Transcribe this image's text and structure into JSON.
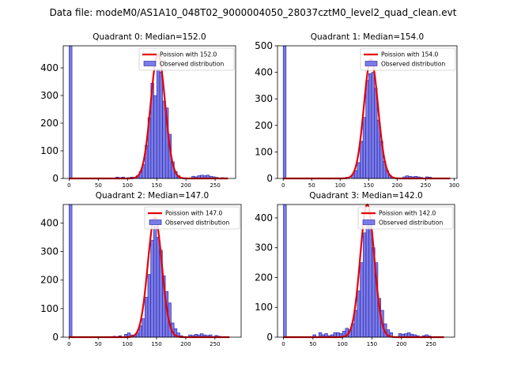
{
  "figure": {
    "suptitle": "Data file: modeM0/AS1A10_048T02_9000004050_28037cztM0_level2_quad_clean.evt"
  },
  "colors": {
    "bar_fill": "#7b7be8",
    "bar_edge": "#1f1fa0",
    "fit_line": "#e80000",
    "axis": "#000000"
  },
  "chart_data": [
    {
      "type": "bar",
      "title": "Quadrant 0: Median=152.0",
      "legend_location": "top-right",
      "legend": [
        "Poission with 152.0",
        "Observed distribution"
      ],
      "xlim": [
        -10,
        285
      ],
      "ylim": [
        0,
        480
      ],
      "xticks": [
        "0",
        "50",
        "100",
        "150",
        "200",
        "250"
      ],
      "yticks": [
        "0",
        "100",
        "200",
        "300",
        "400"
      ],
      "bin_width": 5,
      "hist": [
        {
          "x": 0,
          "y": 480
        },
        {
          "x": 80,
          "y": 5
        },
        {
          "x": 85,
          "y": 3
        },
        {
          "x": 90,
          "y": 5
        },
        {
          "x": 100,
          "y": 3
        },
        {
          "x": 105,
          "y": 5
        },
        {
          "x": 115,
          "y": 10
        },
        {
          "x": 120,
          "y": 25
        },
        {
          "x": 125,
          "y": 50
        },
        {
          "x": 130,
          "y": 120
        },
        {
          "x": 135,
          "y": 220
        },
        {
          "x": 140,
          "y": 345
        },
        {
          "x": 145,
          "y": 300
        },
        {
          "x": 150,
          "y": 395
        },
        {
          "x": 155,
          "y": 385
        },
        {
          "x": 160,
          "y": 280
        },
        {
          "x": 165,
          "y": 255
        },
        {
          "x": 170,
          "y": 160
        },
        {
          "x": 175,
          "y": 60
        },
        {
          "x": 180,
          "y": 25
        },
        {
          "x": 185,
          "y": 10
        },
        {
          "x": 190,
          "y": 3
        },
        {
          "x": 195,
          "y": 2
        },
        {
          "x": 210,
          "y": 8
        },
        {
          "x": 215,
          "y": 6
        },
        {
          "x": 220,
          "y": 10
        },
        {
          "x": 225,
          "y": 12
        },
        {
          "x": 230,
          "y": 10
        },
        {
          "x": 235,
          "y": 12
        },
        {
          "x": 240,
          "y": 8
        },
        {
          "x": 245,
          "y": 6
        },
        {
          "x": 250,
          "y": 4
        },
        {
          "x": 260,
          "y": 3
        }
      ],
      "fit": {
        "label": "Poission with 152.0",
        "mu": 152.0,
        "peak": 450,
        "range": [
          0,
          272
        ]
      }
    },
    {
      "type": "bar",
      "title": "Quadrant 1: Median=154.0",
      "legend_location": "top-right",
      "legend": [
        "Poission with 154.0",
        "Observed distribution"
      ],
      "xlim": [
        -10,
        305
      ],
      "ylim": [
        0,
        500
      ],
      "xticks": [
        "0",
        "50",
        "100",
        "150",
        "200",
        "250",
        "300"
      ],
      "yticks": [
        "0",
        "100",
        "200",
        "300",
        "400",
        "500"
      ],
      "bin_width": 5,
      "hist": [
        {
          "x": 0,
          "y": 500
        },
        {
          "x": 95,
          "y": 2
        },
        {
          "x": 105,
          "y": 3
        },
        {
          "x": 110,
          "y": 5
        },
        {
          "x": 120,
          "y": 15
        },
        {
          "x": 125,
          "y": 30
        },
        {
          "x": 130,
          "y": 60
        },
        {
          "x": 135,
          "y": 140
        },
        {
          "x": 140,
          "y": 230
        },
        {
          "x": 145,
          "y": 370
        },
        {
          "x": 150,
          "y": 395
        },
        {
          "x": 155,
          "y": 400
        },
        {
          "x": 160,
          "y": 340
        },
        {
          "x": 165,
          "y": 220
        },
        {
          "x": 170,
          "y": 140
        },
        {
          "x": 175,
          "y": 65
        },
        {
          "x": 180,
          "y": 30
        },
        {
          "x": 185,
          "y": 12
        },
        {
          "x": 190,
          "y": 5
        },
        {
          "x": 210,
          "y": 6
        },
        {
          "x": 215,
          "y": 10
        },
        {
          "x": 220,
          "y": 8
        },
        {
          "x": 225,
          "y": 6
        },
        {
          "x": 230,
          "y": 8
        },
        {
          "x": 235,
          "y": 6
        },
        {
          "x": 240,
          "y": 4
        },
        {
          "x": 250,
          "y": 6
        },
        {
          "x": 255,
          "y": 5
        }
      ],
      "fit": {
        "label": "Poission with 154.0",
        "mu": 154.0,
        "peak": 450,
        "range": [
          0,
          293
        ]
      }
    },
    {
      "type": "bar",
      "title": "Quadrant 2: Median=147.0",
      "legend_location": "top-right",
      "legend": [
        "Poission with 147.0",
        "Observed distribution"
      ],
      "xlim": [
        -10,
        295
      ],
      "ylim": [
        0,
        465
      ],
      "xticks": [
        "0",
        "50",
        "100",
        "150",
        "200",
        "250"
      ],
      "yticks": [
        "0",
        "100",
        "200",
        "300",
        "400"
      ],
      "bin_width": 5,
      "hist": [
        {
          "x": 0,
          "y": 465
        },
        {
          "x": 75,
          "y": 3
        },
        {
          "x": 85,
          "y": 5
        },
        {
          "x": 95,
          "y": 10
        },
        {
          "x": 100,
          "y": 15
        },
        {
          "x": 105,
          "y": 8
        },
        {
          "x": 110,
          "y": 5
        },
        {
          "x": 115,
          "y": 15
        },
        {
          "x": 120,
          "y": 40
        },
        {
          "x": 125,
          "y": 65
        },
        {
          "x": 130,
          "y": 140
        },
        {
          "x": 135,
          "y": 220
        },
        {
          "x": 140,
          "y": 340
        },
        {
          "x": 145,
          "y": 390
        },
        {
          "x": 150,
          "y": 350
        },
        {
          "x": 155,
          "y": 305
        },
        {
          "x": 160,
          "y": 215
        },
        {
          "x": 165,
          "y": 160
        },
        {
          "x": 170,
          "y": 120
        },
        {
          "x": 175,
          "y": 50
        },
        {
          "x": 180,
          "y": 30
        },
        {
          "x": 185,
          "y": 15
        },
        {
          "x": 190,
          "y": 5
        },
        {
          "x": 205,
          "y": 8
        },
        {
          "x": 210,
          "y": 6
        },
        {
          "x": 215,
          "y": 10
        },
        {
          "x": 220,
          "y": 8
        },
        {
          "x": 225,
          "y": 12
        },
        {
          "x": 230,
          "y": 8
        },
        {
          "x": 235,
          "y": 6
        },
        {
          "x": 240,
          "y": 8
        },
        {
          "x": 250,
          "y": 6
        },
        {
          "x": 255,
          "y": 3
        }
      ],
      "fit": {
        "label": "Poission with 147.0",
        "mu": 147.0,
        "peak": 420,
        "range": [
          0,
          275
        ]
      }
    },
    {
      "type": "bar",
      "title": "Quadrant 3: Median=142.0",
      "legend_location": "top-right",
      "legend": [
        "Poission with 142.0",
        "Observed distribution"
      ],
      "xlim": [
        -10,
        290
      ],
      "ylim": [
        0,
        445
      ],
      "xticks": [
        "0",
        "50",
        "100",
        "150",
        "200",
        "250"
      ],
      "yticks": [
        "0",
        "100",
        "200",
        "300",
        "400"
      ],
      "bin_width": 5,
      "hist": [
        {
          "x": 0,
          "y": 445
        },
        {
          "x": 50,
          "y": 8
        },
        {
          "x": 60,
          "y": 15
        },
        {
          "x": 65,
          "y": 8
        },
        {
          "x": 70,
          "y": 12
        },
        {
          "x": 75,
          "y": 5
        },
        {
          "x": 80,
          "y": 8
        },
        {
          "x": 85,
          "y": 15
        },
        {
          "x": 90,
          "y": 15
        },
        {
          "x": 95,
          "y": 12
        },
        {
          "x": 100,
          "y": 20
        },
        {
          "x": 105,
          "y": 30
        },
        {
          "x": 110,
          "y": 25
        },
        {
          "x": 115,
          "y": 45
        },
        {
          "x": 120,
          "y": 90
        },
        {
          "x": 125,
          "y": 155
        },
        {
          "x": 130,
          "y": 250
        },
        {
          "x": 135,
          "y": 350
        },
        {
          "x": 140,
          "y": 395
        },
        {
          "x": 145,
          "y": 380
        },
        {
          "x": 150,
          "y": 300
        },
        {
          "x": 155,
          "y": 250
        },
        {
          "x": 160,
          "y": 130
        },
        {
          "x": 165,
          "y": 90
        },
        {
          "x": 170,
          "y": 45
        },
        {
          "x": 175,
          "y": 25
        },
        {
          "x": 180,
          "y": 15
        },
        {
          "x": 195,
          "y": 12
        },
        {
          "x": 200,
          "y": 10
        },
        {
          "x": 205,
          "y": 12
        },
        {
          "x": 210,
          "y": 15
        },
        {
          "x": 215,
          "y": 10
        },
        {
          "x": 220,
          "y": 8
        },
        {
          "x": 225,
          "y": 5
        },
        {
          "x": 235,
          "y": 5
        },
        {
          "x": 240,
          "y": 8
        },
        {
          "x": 245,
          "y": 4
        }
      ],
      "fit": {
        "label": "Poission with 142.0",
        "mu": 142.0,
        "peak": 445,
        "range": [
          0,
          272
        ]
      }
    }
  ]
}
